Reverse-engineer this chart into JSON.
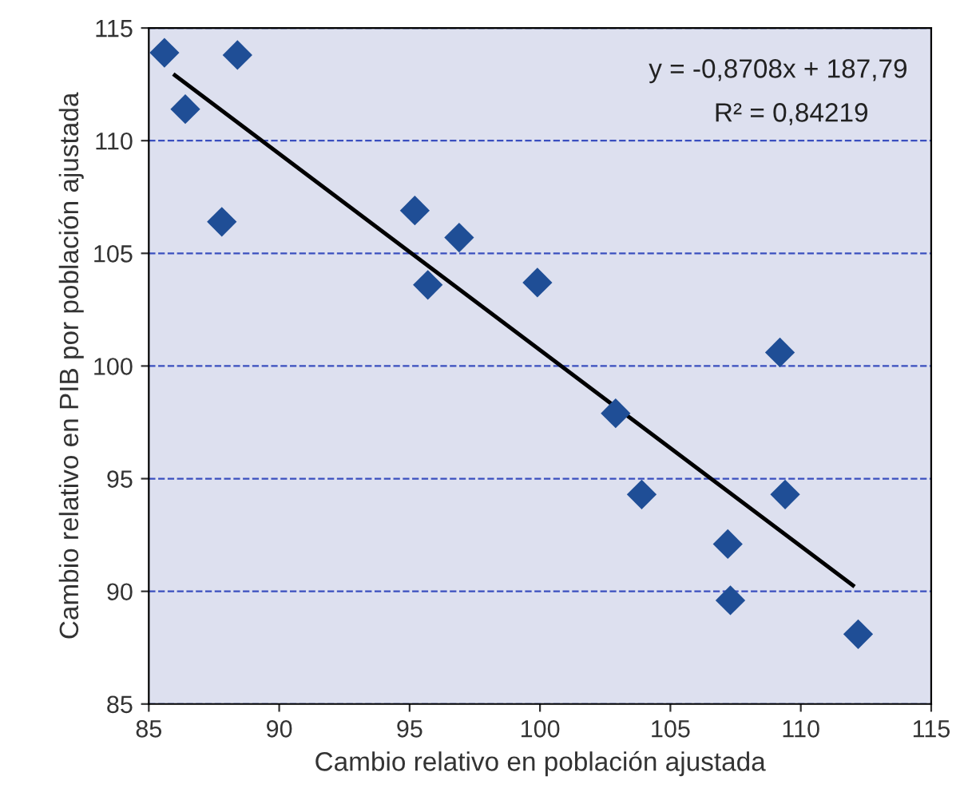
{
  "chart_data": {
    "type": "scatter",
    "xlabel": "Cambio relativo en población ajustada",
    "ylabel": "Cambio relativo en PIB por población ajustada",
    "annotations": [
      "y = -0,8708x + 187,79",
      "R² = 0,84219"
    ],
    "series": [
      {
        "color": "#1f4e96",
        "marker": "diamond",
        "x": [
          85.6,
          86.4,
          88.4,
          87.8,
          95.2,
          96.9,
          95.7,
          99.9,
          102.9,
          103.9,
          109.2,
          109.4,
          107.2,
          107.3,
          112.2
        ],
        "values": [
          113.9,
          111.4,
          113.8,
          106.4,
          106.9,
          105.7,
          103.6,
          103.7,
          97.9,
          94.3,
          100.6,
          94.3,
          92.1,
          89.6,
          88.1
        ]
      },
      {
        "type": "line",
        "color": "#000000",
        "x": [
          86,
          112
        ],
        "values": [
          112.9,
          90.26
        ]
      }
    ],
    "xlim": [
      85,
      115
    ],
    "xticks": [
      85,
      90,
      95,
      100,
      105,
      110,
      115
    ],
    "ylim": [
      85,
      115
    ],
    "yticks": [
      85,
      90,
      95,
      100,
      105,
      110,
      115
    ],
    "grid": "y"
  }
}
